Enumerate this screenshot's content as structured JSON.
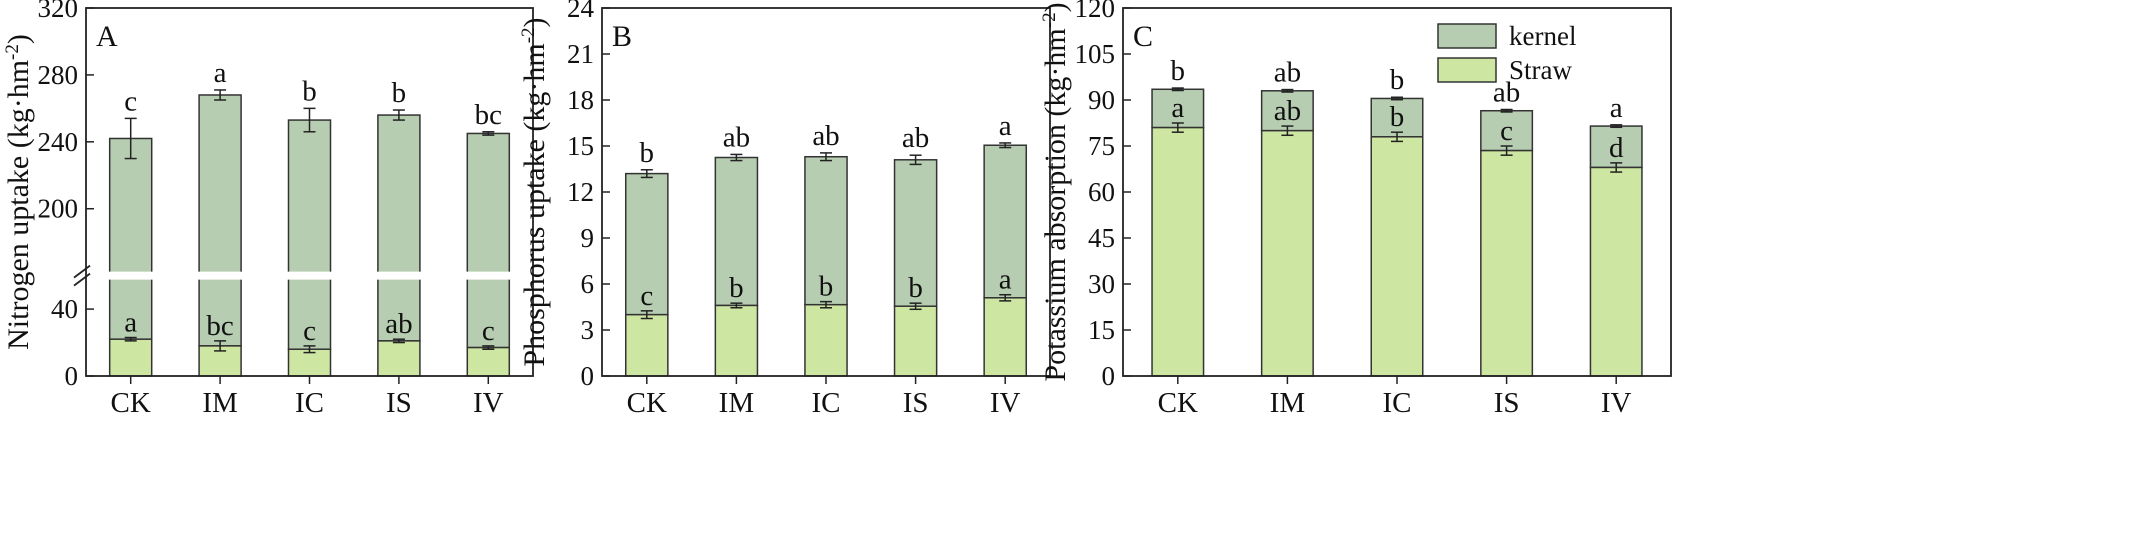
{
  "colors": {
    "kernel": "#b7cdb1",
    "straw": "#cde6a2",
    "axis": "#222222",
    "break": "#ffffff"
  },
  "chart_data": [
    {
      "type": "bar",
      "stacked": true,
      "panel_label": "A",
      "ylabel": "Nitrogen uptake (kg·hm⁻²)",
      "ylabel_main": "Nitrogen uptake (kg·hm",
      "ylabel_sup": "-2",
      "ylabel_close": ")",
      "axis_break": {
        "from": 60,
        "to": 160
      },
      "ylim": [
        0,
        320
      ],
      "yticks": [
        "0",
        "40",
        "200",
        "240",
        "280",
        "320"
      ],
      "categories": [
        "CK",
        "IM",
        "IC",
        "IS",
        "IV"
      ],
      "series": [
        {
          "name": "Straw",
          "values": [
            22,
            18,
            16,
            21,
            17
          ],
          "errors": [
            1,
            3,
            2,
            1,
            1
          ],
          "labels": [
            "a",
            "bc",
            "c",
            "ab",
            "c"
          ]
        },
        {
          "name": "kernel",
          "totals": [
            242,
            268,
            253,
            256,
            245
          ],
          "errors": [
            12,
            3,
            7,
            3,
            1
          ],
          "labels": [
            "c",
            "a",
            "b",
            "b",
            "bc"
          ]
        }
      ]
    },
    {
      "type": "bar",
      "stacked": true,
      "panel_label": "B",
      "ylabel": "Phosphorus uptake (kg·hm⁻²)",
      "ylabel_main": "Phosphorus uptake (kg·hm",
      "ylabel_sup": "-2",
      "ylabel_close": ")",
      "ylim": [
        0,
        24
      ],
      "yticks": [
        "0",
        "3",
        "6",
        "9",
        "12",
        "15",
        "18",
        "21",
        "24"
      ],
      "categories": [
        "CK",
        "IM",
        "IC",
        "IS",
        "IV"
      ],
      "series": [
        {
          "name": "Straw",
          "values": [
            4.0,
            4.6,
            4.65,
            4.55,
            5.1
          ],
          "errors": [
            0.25,
            0.15,
            0.2,
            0.2,
            0.2
          ],
          "labels": [
            "c",
            "b",
            "b",
            "b",
            "a"
          ]
        },
        {
          "name": "kernel",
          "totals": [
            13.2,
            14.25,
            14.3,
            14.1,
            15.05
          ],
          "errors": [
            0.25,
            0.2,
            0.25,
            0.3,
            0.15
          ],
          "labels": [
            "b",
            "ab",
            "ab",
            "ab",
            "a"
          ]
        }
      ]
    },
    {
      "type": "bar",
      "stacked": true,
      "panel_label": "C",
      "ylabel": "Potassium absorption (kg·hm⁻²)",
      "ylabel_main": "Potassium absorption (kg·hm",
      "ylabel_sup": "-2",
      "ylabel_close": ")",
      "ylim": [
        0,
        120
      ],
      "yticks": [
        "0",
        "15",
        "30",
        "45",
        "60",
        "75",
        "90",
        "105",
        "120"
      ],
      "legend": {
        "placement": "top-right",
        "items": [
          "kernel",
          "Straw"
        ]
      },
      "categories": [
        "CK",
        "IM",
        "IC",
        "IS",
        "IV"
      ],
      "series": [
        {
          "name": "Straw",
          "values": [
            81,
            80,
            78,
            73.5,
            68
          ],
          "errors": [
            1.5,
            1.5,
            1.5,
            1.5,
            1.5
          ],
          "labels": [
            "a",
            "ab",
            "b",
            "c",
            "d"
          ]
        },
        {
          "name": "kernel",
          "totals": [
            93.5,
            93,
            90.5,
            86.5,
            81.5
          ],
          "errors": [
            0.4,
            0.4,
            0.4,
            0.4,
            0.4
          ],
          "labels": [
            "b",
            "ab",
            "b",
            "ab",
            "a"
          ]
        }
      ]
    }
  ]
}
